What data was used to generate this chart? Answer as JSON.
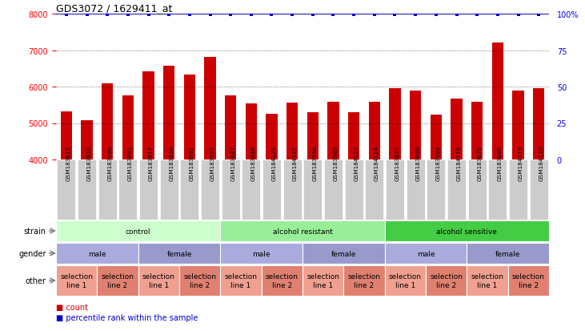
{
  "title": "GDS3072 / 1629411_at",
  "samples": [
    "GSM183815",
    "GSM183816",
    "GSM183990",
    "GSM183991",
    "GSM183817",
    "GSM183856",
    "GSM183992",
    "GSM183993",
    "GSM183887",
    "GSM183888",
    "GSM184121",
    "GSM184122",
    "GSM183936",
    "GSM183989",
    "GSM184123",
    "GSM184124",
    "GSM183857",
    "GSM183858",
    "GSM183994",
    "GSM184118",
    "GSM183875",
    "GSM183886",
    "GSM184119",
    "GSM184120"
  ],
  "bar_values": [
    5320,
    5080,
    6080,
    5760,
    6420,
    6580,
    6340,
    6820,
    5760,
    5540,
    5260,
    5560,
    5300,
    5580,
    5300,
    5580,
    5960,
    5900,
    5230,
    5680,
    5580,
    7200,
    5880,
    5950
  ],
  "bar_color": "#cc0000",
  "percentile_color": "#0000cc",
  "ylim": [
    4000,
    8000
  ],
  "yticks": [
    4000,
    5000,
    6000,
    7000,
    8000
  ],
  "percentile_yticks": [
    0,
    25,
    50,
    75,
    100
  ],
  "percentile_ylim": [
    0,
    100
  ],
  "strain_groups": [
    {
      "label": "control",
      "start": 0,
      "end": 8,
      "color": "#ccffcc"
    },
    {
      "label": "alcohol resistant",
      "start": 8,
      "end": 16,
      "color": "#99ee99"
    },
    {
      "label": "alcohol sensitive",
      "start": 16,
      "end": 24,
      "color": "#44cc44"
    }
  ],
  "gender_groups": [
    {
      "label": "male",
      "start": 0,
      "end": 4,
      "color": "#aaaadd"
    },
    {
      "label": "female",
      "start": 4,
      "end": 8,
      "color": "#9999cc"
    },
    {
      "label": "male",
      "start": 8,
      "end": 12,
      "color": "#aaaadd"
    },
    {
      "label": "female",
      "start": 12,
      "end": 16,
      "color": "#9999cc"
    },
    {
      "label": "male",
      "start": 16,
      "end": 20,
      "color": "#aaaadd"
    },
    {
      "label": "female",
      "start": 20,
      "end": 24,
      "color": "#9999cc"
    }
  ],
  "other_groups": [
    {
      "label": "selection\nline 1",
      "start": 0,
      "end": 2,
      "color": "#f0a090"
    },
    {
      "label": "selection\nline 2",
      "start": 2,
      "end": 4,
      "color": "#e08070"
    },
    {
      "label": "selection\nline 1",
      "start": 4,
      "end": 6,
      "color": "#f0a090"
    },
    {
      "label": "selection\nline 2",
      "start": 6,
      "end": 8,
      "color": "#e08070"
    },
    {
      "label": "selection\nline 1",
      "start": 8,
      "end": 10,
      "color": "#f0a090"
    },
    {
      "label": "selection\nline 2",
      "start": 10,
      "end": 12,
      "color": "#e08070"
    },
    {
      "label": "selection\nline 1",
      "start": 12,
      "end": 14,
      "color": "#f0a090"
    },
    {
      "label": "selection\nline 2",
      "start": 14,
      "end": 16,
      "color": "#e08070"
    },
    {
      "label": "selection\nline 1",
      "start": 16,
      "end": 18,
      "color": "#f0a090"
    },
    {
      "label": "selection\nline 2",
      "start": 18,
      "end": 20,
      "color": "#e08070"
    },
    {
      "label": "selection\nline 1",
      "start": 20,
      "end": 22,
      "color": "#f0a090"
    },
    {
      "label": "selection\nline 2",
      "start": 22,
      "end": 24,
      "color": "#e08070"
    }
  ],
  "plot_bg": "#ffffff",
  "xlabel_bg": "#cccccc",
  "legend_count_color": "#cc0000",
  "legend_percentile_color": "#0000cc"
}
